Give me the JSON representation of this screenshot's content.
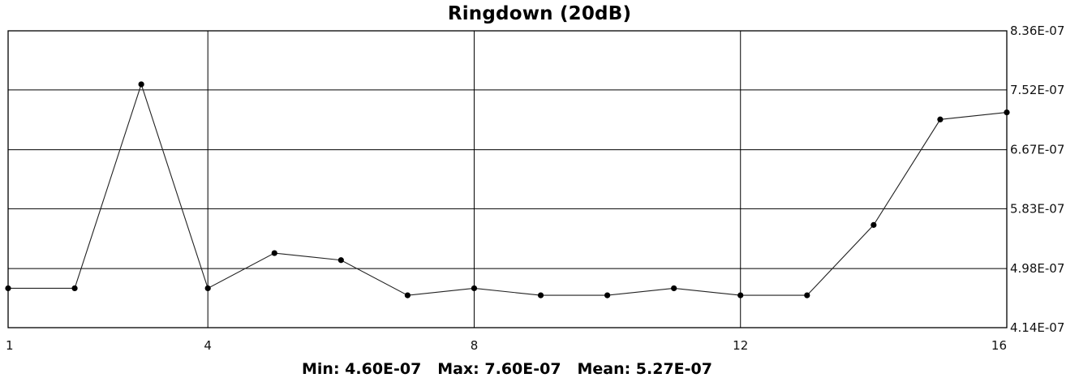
{
  "chart_data": {
    "type": "line",
    "title": "Ringdown (20dB)",
    "xlabel": "",
    "ylabel": "",
    "xlim": [
      1,
      16
    ],
    "ylim": [
      4.14e-07,
      8.36e-07
    ],
    "x_ticks": [
      1,
      4,
      8,
      12,
      16
    ],
    "x_tick_labels": [
      "1",
      "4",
      "8",
      "12",
      "16"
    ],
    "y_ticks": [
      4.14e-07,
      4.98e-07,
      5.83e-07,
      6.67e-07,
      7.52e-07,
      8.36e-07
    ],
    "y_tick_labels": [
      "4.14E-07",
      "4.98E-07",
      "5.83E-07",
      "6.67E-07",
      "7.52E-07",
      "8.36E-07"
    ],
    "grid": true,
    "series": [
      {
        "x": [
          1,
          2,
          3,
          4,
          5,
          6,
          7,
          8,
          9,
          10,
          11,
          12,
          13,
          14,
          15,
          16
        ],
        "values": [
          4.7e-07,
          4.7e-07,
          7.6e-07,
          4.7e-07,
          5.2e-07,
          5.1e-07,
          4.6e-07,
          4.7e-07,
          4.6e-07,
          4.6e-07,
          4.7e-07,
          4.6e-07,
          4.6e-07,
          5.6e-07,
          7.1e-07,
          7.2e-07
        ]
      }
    ],
    "stats": {
      "min": "Min: 4.60E-07",
      "max": "Max: 7.60E-07",
      "mean": "Mean: 5.27E-07"
    }
  }
}
